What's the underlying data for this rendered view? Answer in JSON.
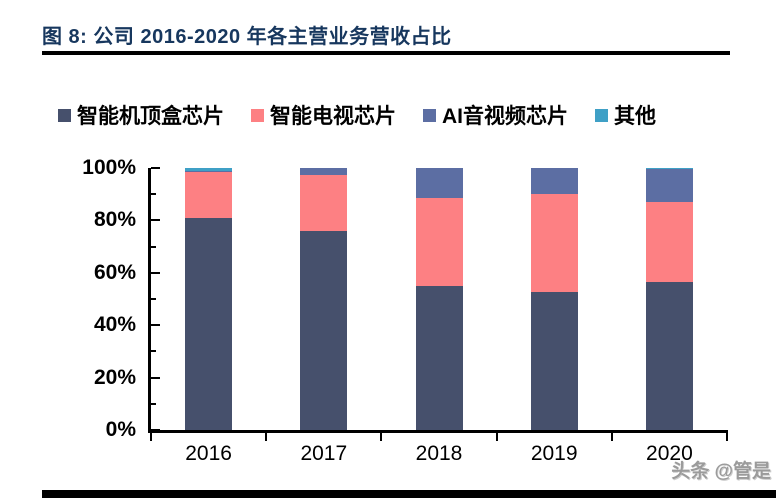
{
  "figure": {
    "title": "图 8:  公司 2016-2020 年各主营业务营收占比",
    "title_color": "#17375E"
  },
  "watermark": {
    "text": "头条 @管是"
  },
  "chart_data": {
    "type": "bar",
    "stacked": true,
    "title": "公司 2016-2020 年各主营业务营收占比",
    "categories": [
      "2016",
      "2017",
      "2018",
      "2019",
      "2020"
    ],
    "series": [
      {
        "name": "智能机顶盒芯片",
        "color": "#46506C",
        "values": [
          81,
          76,
          55,
          52.5,
          56.5
        ]
      },
      {
        "name": "智能电视芯片",
        "color": "#FD8083",
        "values": [
          17.5,
          21.5,
          33.5,
          37.5,
          30.5
        ]
      },
      {
        "name": "AI音视频芯片",
        "color": "#5C6EA3",
        "values": [
          0.5,
          2.5,
          11.5,
          10,
          12.5
        ]
      },
      {
        "name": "其他",
        "color": "#3FA0C6",
        "values": [
          1,
          0,
          0,
          0,
          0.5
        ]
      }
    ],
    "xlabel": "",
    "ylabel": "",
    "ylim": [
      0,
      100
    ],
    "ytick_labels": [
      "0%",
      "20%",
      "40%",
      "60%",
      "80%",
      "100%"
    ],
    "ytick_values": [
      0,
      20,
      40,
      60,
      80,
      100
    ],
    "yminor_tick_values": [
      10,
      30,
      50,
      70,
      90
    ],
    "grid": false,
    "legend_position": "top",
    "axis_color": "#000000"
  }
}
